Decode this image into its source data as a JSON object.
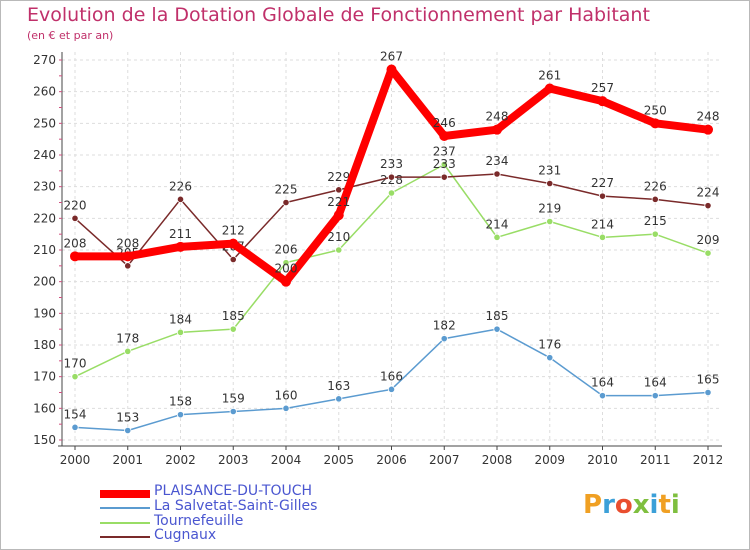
{
  "chart_data": {
    "type": "line",
    "title": "Evolution de la Dotation Globale de Fonctionnement par Habitant",
    "subtitle": "(en € et par an)",
    "x": [
      "2000",
      "2001",
      "2002",
      "2003",
      "2004",
      "2005",
      "2006",
      "2007",
      "2008",
      "2009",
      "2010",
      "2011",
      "2012"
    ],
    "ylim": [
      150,
      270
    ],
    "yticks": [
      150,
      160,
      170,
      180,
      190,
      200,
      210,
      220,
      230,
      240,
      250,
      260,
      270
    ],
    "grid": true,
    "series": [
      {
        "name": "PLAISANCE-DU-TOUCH",
        "color": "#ff0000",
        "values": [
          208,
          208,
          211,
          212,
          200,
          221,
          267,
          246,
          248,
          261,
          257,
          250,
          248
        ],
        "labels": [
          "208",
          "208",
          "211",
          "212",
          "200",
          "221",
          "267",
          "246",
          "248",
          "261",
          "257",
          "250",
          "248"
        ]
      },
      {
        "name": "La Salvetat-Saint-Gilles",
        "color": "#5b9bd0",
        "values": [
          154,
          153,
          158,
          159,
          160,
          163,
          166,
          182,
          185,
          176,
          164,
          164,
          165
        ],
        "labels": [
          "154",
          "153",
          "158",
          "159",
          "160",
          "163",
          "166",
          "182",
          "185",
          "176",
          "164",
          "164",
          "165"
        ]
      },
      {
        "name": "Tournefeuille",
        "color": "#99dd66",
        "values": [
          170,
          178,
          184,
          185,
          206,
          210,
          228,
          237,
          214,
          219,
          214,
          215,
          209
        ],
        "labels": [
          "170",
          "178",
          "184",
          "185",
          "206",
          "210",
          "228",
          "237",
          "214",
          "219",
          "214",
          "215",
          "209"
        ]
      },
      {
        "name": "Cugnaux",
        "color": "#7a2a2a",
        "values": [
          220,
          205,
          226,
          207,
          225,
          229,
          233,
          233,
          234,
          231,
          227,
          226,
          224
        ],
        "labels": [
          "220",
          "205",
          "226",
          "207",
          "225",
          "229",
          "233",
          "233",
          "234",
          "231",
          "227",
          "226",
          "224"
        ]
      }
    ]
  },
  "legend": {
    "placement": "bottom-left"
  },
  "logo": {
    "text": "Proxiti",
    "letters": [
      "P",
      "r",
      "o",
      "x",
      "i",
      "t",
      "i"
    ]
  }
}
